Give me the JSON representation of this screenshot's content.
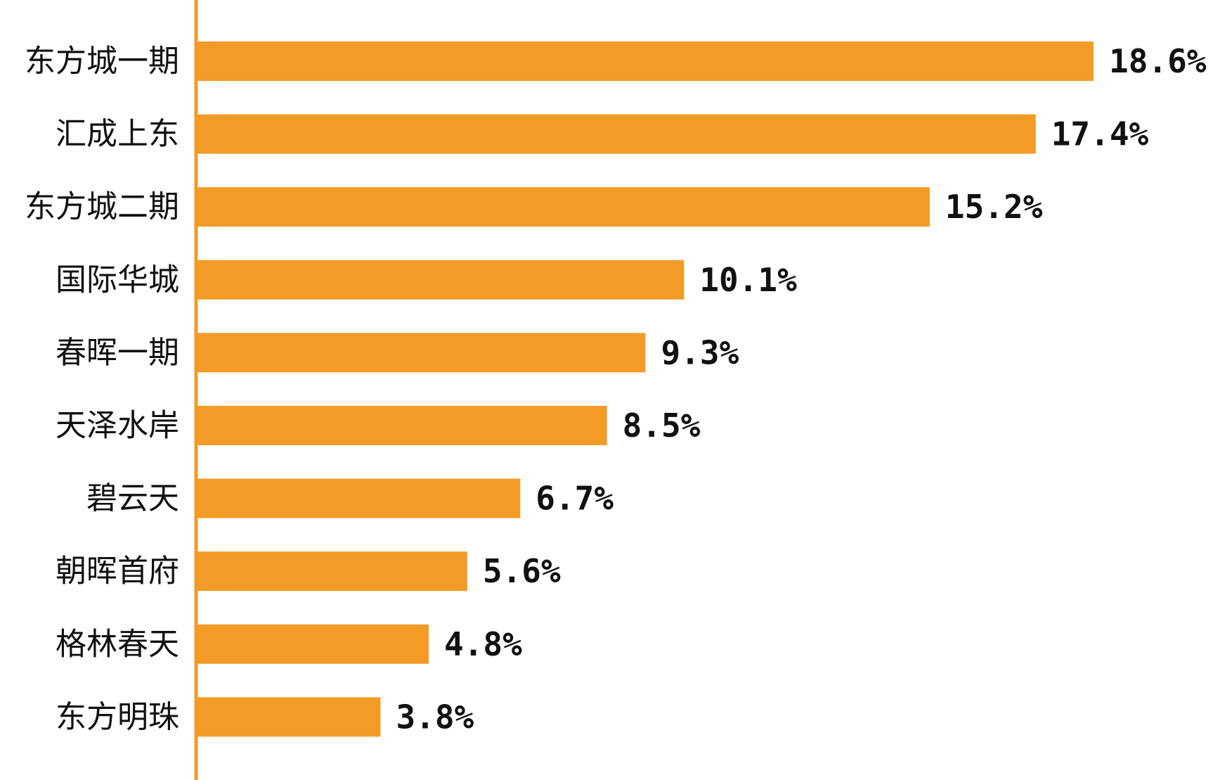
{
  "chart_data": {
    "type": "bar",
    "orientation": "horizontal",
    "categories": [
      "东方城一期",
      "汇成上东",
      "东方城二期",
      "国际华城",
      "春晖一期",
      "天泽水岸",
      "碧云天",
      "朝晖首府",
      "格林春天",
      "东方明珠"
    ],
    "values": [
      18.6,
      17.4,
      15.2,
      10.1,
      9.3,
      8.5,
      6.7,
      5.6,
      4.8,
      3.8
    ],
    "value_labels": [
      "18.6%",
      "17.4%",
      "15.2%",
      "10.1%",
      "9.3%",
      "8.5%",
      "6.7%",
      "5.6%",
      "4.8%",
      "3.8%"
    ],
    "title": "",
    "xlabel": "",
    "ylabel": "",
    "grid": false,
    "legend": "none",
    "colors": {
      "bar": "#F29B26",
      "axis": "#F29B26",
      "text": "#111111"
    }
  }
}
